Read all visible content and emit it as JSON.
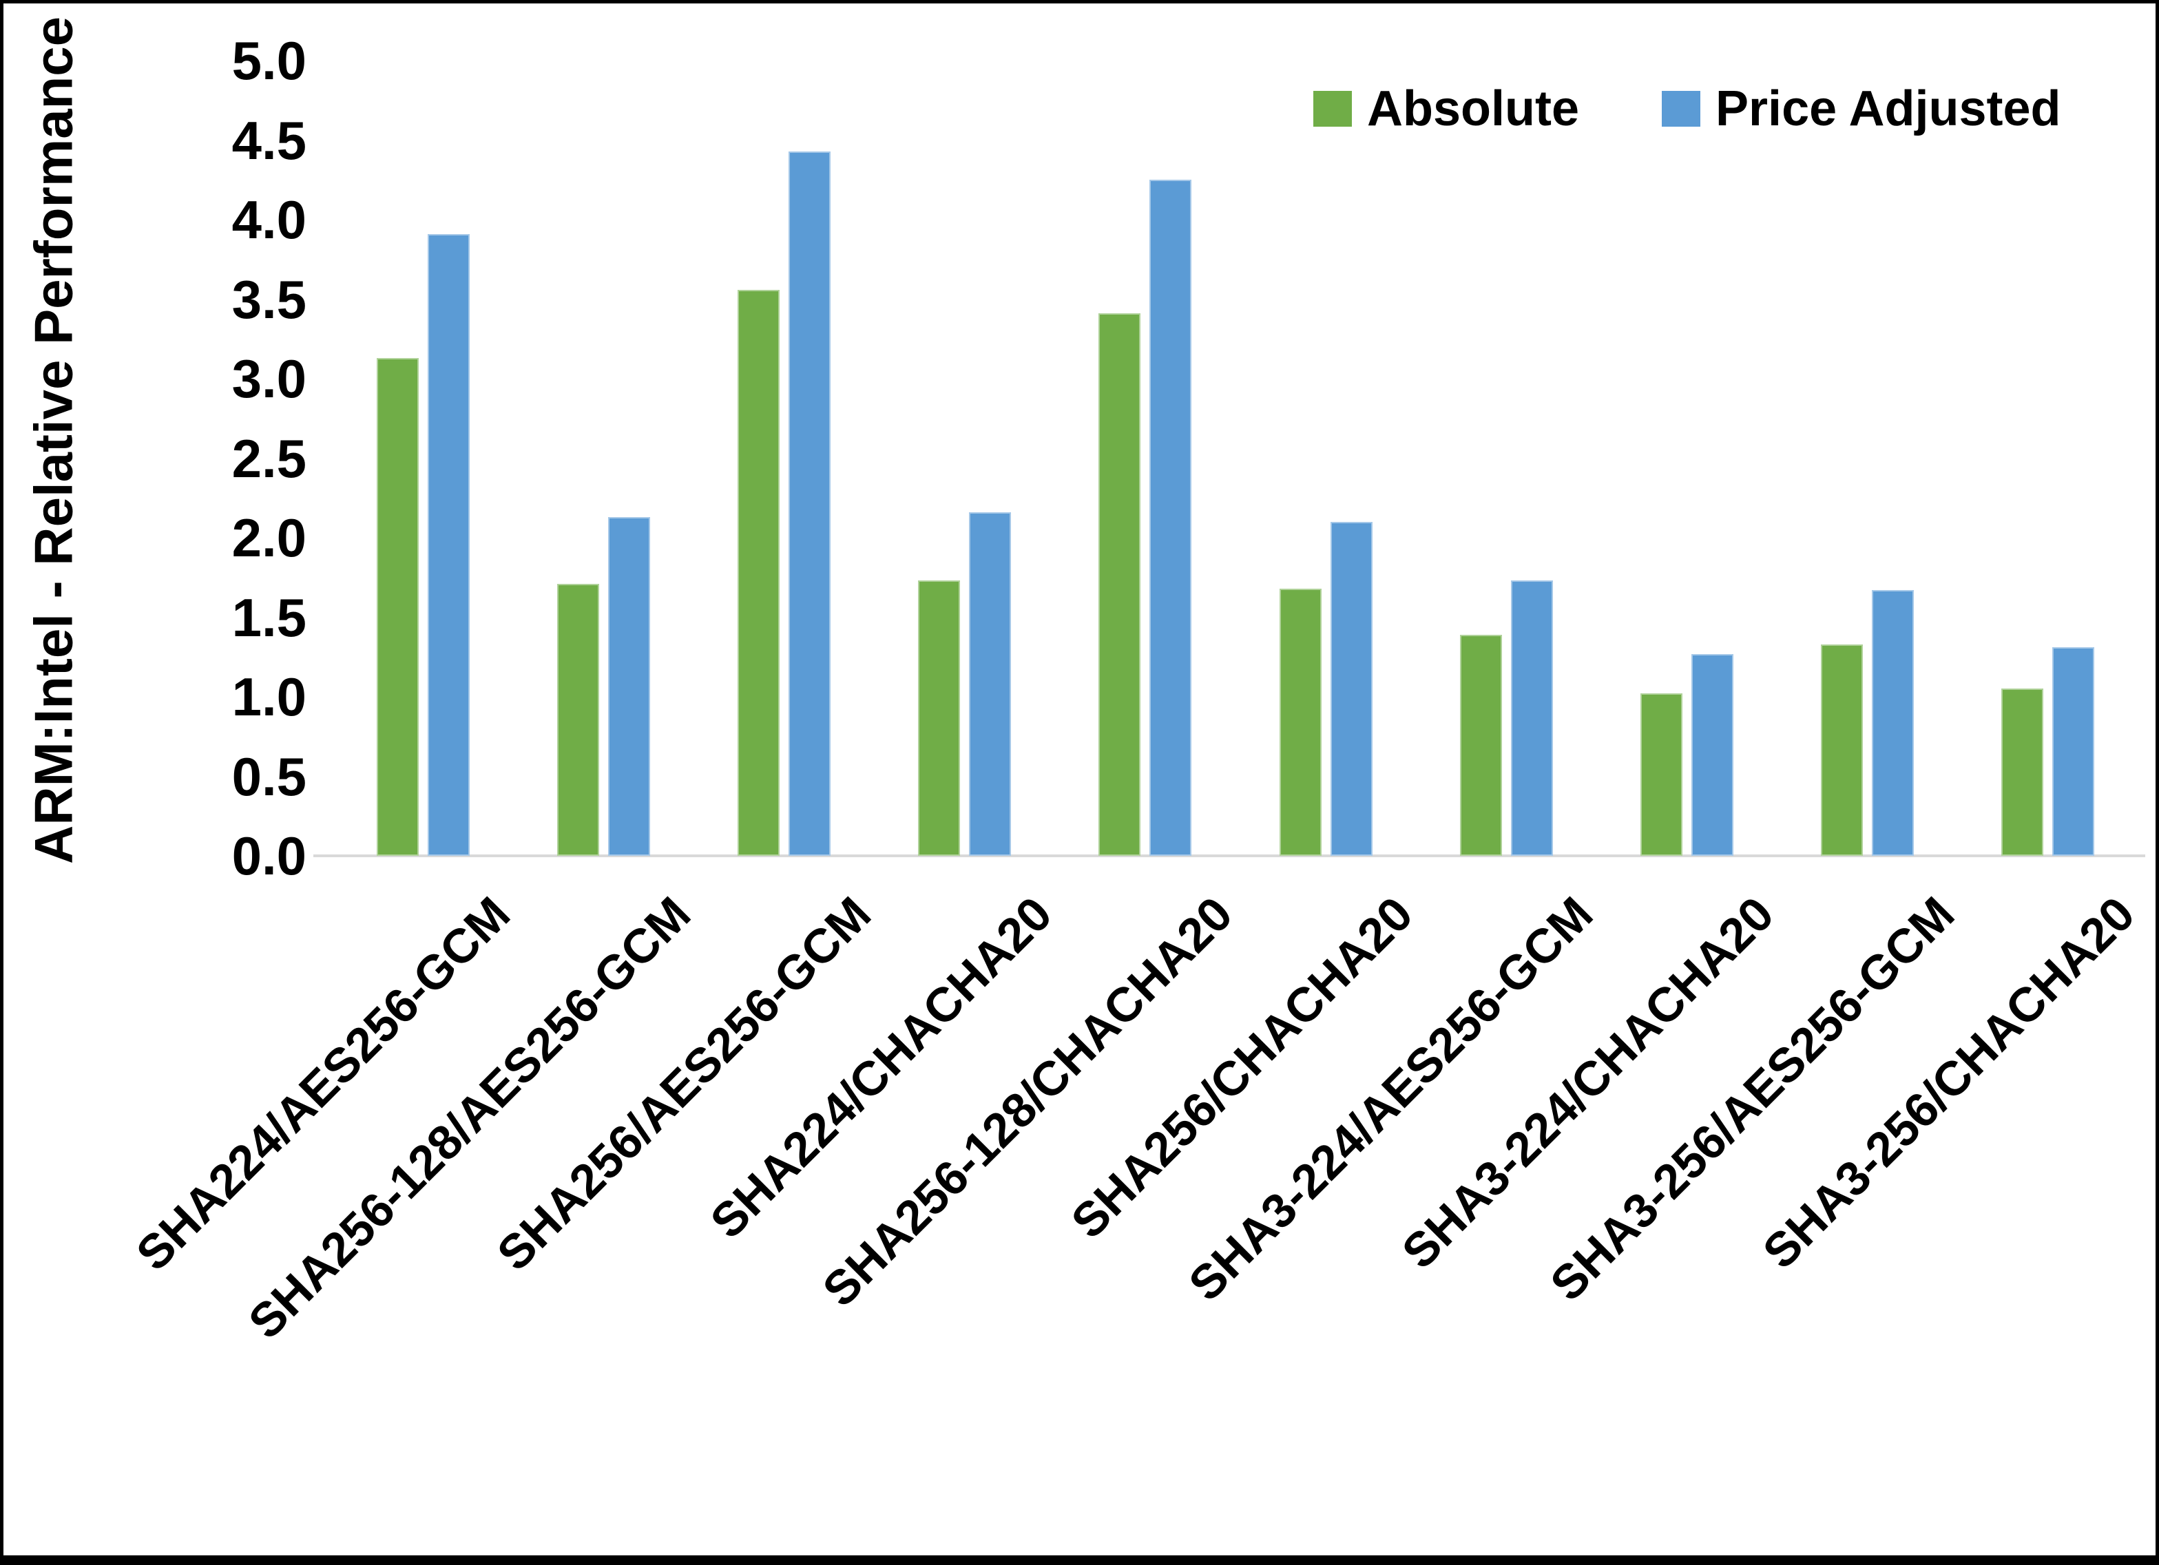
{
  "chart_data": {
    "type": "bar",
    "title": "",
    "xlabel": "",
    "ylabel": "ARM:Intel - Relative Performance",
    "ylim": [
      0.0,
      5.0
    ],
    "ytick_step": 0.5,
    "ytick_labels": [
      "0.0",
      "0.5",
      "1.0",
      "1.5",
      "2.0",
      "2.5",
      "3.0",
      "3.5",
      "4.0",
      "4.5",
      "5.0"
    ],
    "grid": false,
    "legend_position": "top-right",
    "categories": [
      "SHA224/AES256-GCM",
      "SHA256-128/AES256-GCM",
      "SHA256/AES256-GCM",
      "SHA224/CHACHA20",
      "SHA256-128/CHACHA20",
      "SHA256/CHACHA20",
      "SHA3-224/AES256-GCM",
      "SHA3-224/CHACHA20",
      "SHA3-256/AES256-GCM",
      "SHA3-256/CHACHA20"
    ],
    "series": [
      {
        "name": "Absolute",
        "color": "#70AD47",
        "values": [
          3.13,
          1.71,
          3.56,
          1.73,
          3.41,
          1.68,
          1.39,
          1.02,
          1.33,
          1.05
        ]
      },
      {
        "name": "Price Adjusted",
        "color": "#5B9BD5",
        "values": [
          3.91,
          2.13,
          4.43,
          2.16,
          4.25,
          2.1,
          1.73,
          1.27,
          1.67,
          1.31
        ]
      }
    ],
    "axis_line_color": "#D9D9D9"
  }
}
